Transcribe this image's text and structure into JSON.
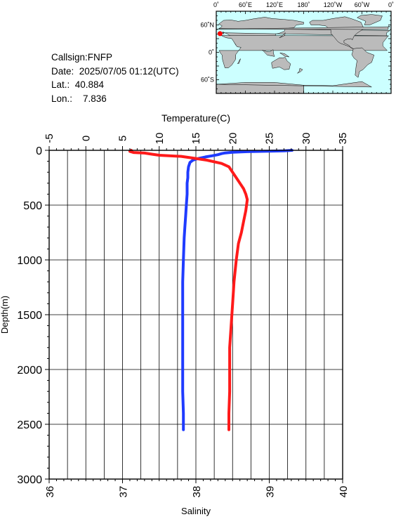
{
  "info": {
    "callsign": "Callsign:FNFP",
    "date": "Date:  2025/07/05 01:12(UTC)",
    "lat": "Lat.:  40.884",
    "lon": "Lon.:    7.836"
  },
  "map": {
    "top_labels": [
      "0˚",
      "60˚E",
      "120˚E",
      "180˚",
      "120˚W",
      "60˚W",
      "0˚"
    ],
    "left_labels": [
      "60˚N",
      "0˚",
      "60˚S"
    ],
    "ocean_color": "#ccffff",
    "land_color": "#bbbbbb",
    "marker_color": "#ff0000",
    "marker": {
      "lon": 7.836,
      "lat": 40.884
    }
  },
  "chart_data": {
    "type": "line",
    "top_axis": {
      "label": "Temperature(C)",
      "range": [
        -5,
        35
      ],
      "ticks": [
        "-5",
        "0",
        "5",
        "10",
        "15",
        "20",
        "25",
        "30",
        "35"
      ]
    },
    "bottom_axis": {
      "label": "Salinity",
      "range": [
        36,
        40
      ],
      "ticks": [
        "36",
        "37",
        "38",
        "39",
        "40"
      ]
    },
    "left_axis": {
      "label": "Depth(m)",
      "range": [
        0,
        3000
      ],
      "inverted": true,
      "ticks": [
        "0",
        "500",
        "1000",
        "1500",
        "2000",
        "2500",
        "3000"
      ]
    },
    "grid": true,
    "series": [
      {
        "axis": "top",
        "color": "#1f3bff",
        "points": [
          [
            28.1,
            0
          ],
          [
            27,
            5
          ],
          [
            25,
            8
          ],
          [
            22,
            12
          ],
          [
            20,
            18
          ],
          [
            19,
            24
          ],
          [
            18.5,
            30
          ],
          [
            18,
            40
          ],
          [
            17.2,
            50
          ],
          [
            16.3,
            60
          ],
          [
            15.3,
            75
          ],
          [
            14.6,
            90
          ],
          [
            14.2,
            110
          ],
          [
            14,
            150
          ],
          [
            13.9,
            200
          ],
          [
            13.9,
            250
          ],
          [
            13.8,
            300
          ],
          [
            13.8,
            400
          ],
          [
            13.7,
            500
          ],
          [
            13.6,
            600
          ],
          [
            13.5,
            700
          ],
          [
            13.4,
            800
          ],
          [
            13.3,
            1000
          ],
          [
            13.2,
            1200
          ],
          [
            13.2,
            1400
          ],
          [
            13.2,
            1600
          ],
          [
            13.2,
            1800
          ],
          [
            13.2,
            2000
          ],
          [
            13.2,
            2200
          ],
          [
            13.3,
            2400
          ],
          [
            13.3,
            2550
          ]
        ]
      },
      {
        "axis": "bottom",
        "color": "#ff1a1a",
        "points": [
          [
            37.12,
            0
          ],
          [
            37.1,
            10
          ],
          [
            37.15,
            20
          ],
          [
            37.3,
            25
          ],
          [
            37.4,
            35
          ],
          [
            37.5,
            45
          ],
          [
            37.8,
            55
          ],
          [
            37.95,
            70
          ],
          [
            38.15,
            90
          ],
          [
            38.35,
            120
          ],
          [
            38.45,
            150
          ],
          [
            38.5,
            200
          ],
          [
            38.6,
            300
          ],
          [
            38.65,
            350
          ],
          [
            38.68,
            400
          ],
          [
            38.7,
            450
          ],
          [
            38.68,
            550
          ],
          [
            38.65,
            650
          ],
          [
            38.62,
            750
          ],
          [
            38.58,
            850
          ],
          [
            38.55,
            1000
          ],
          [
            38.52,
            1200
          ],
          [
            38.5,
            1400
          ],
          [
            38.48,
            1600
          ],
          [
            38.46,
            1800
          ],
          [
            38.46,
            2000
          ],
          [
            38.46,
            2200
          ],
          [
            38.45,
            2400
          ],
          [
            38.45,
            2550
          ]
        ]
      }
    ]
  }
}
